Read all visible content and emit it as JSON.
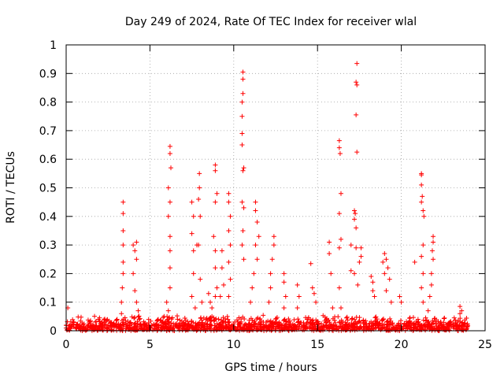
{
  "chart_data": {
    "type": "scatter",
    "title": "Day 249 of 2024, Rate Of TEC Index for receiver wlal",
    "xlabel": "GPS time / hours",
    "ylabel": "ROTI / TECUs",
    "xlim": [
      0,
      25
    ],
    "ylim": [
      0,
      1
    ],
    "xticks": [
      0,
      5,
      10,
      15,
      20,
      25
    ],
    "yticks": [
      0,
      0.1,
      0.2,
      0.3,
      0.4,
      0.5,
      0.6,
      0.7,
      0.8,
      0.9,
      1
    ],
    "ytick_labels": [
      "0",
      "0.1",
      "0.2",
      "0.3",
      "0.4",
      "0.5",
      "0.6",
      "0.7",
      "0.8",
      "0.9",
      "1"
    ],
    "xtick_labels": [
      "0",
      "5",
      "10",
      "15",
      "20",
      "25"
    ],
    "grid": true,
    "marker": "+",
    "color": "#ff0000",
    "baseline": {
      "x_range": [
        0,
        24
      ],
      "typical_max": 0.04
    },
    "series": [
      {
        "name": "ROTI",
        "points": [
          {
            "x": 0.1,
            "y": 0.08
          },
          {
            "x": 3.4,
            "y": 0.45
          },
          {
            "x": 3.4,
            "y": 0.41
          },
          {
            "x": 3.4,
            "y": 0.35
          },
          {
            "x": 3.4,
            "y": 0.3
          },
          {
            "x": 3.4,
            "y": 0.24
          },
          {
            "x": 3.4,
            "y": 0.2
          },
          {
            "x": 3.35,
            "y": 0.15
          },
          {
            "x": 3.3,
            "y": 0.1
          },
          {
            "x": 3.3,
            "y": 0.06
          },
          {
            "x": 4.0,
            "y": 0.3
          },
          {
            "x": 4.1,
            "y": 0.28
          },
          {
            "x": 4.2,
            "y": 0.31
          },
          {
            "x": 4.2,
            "y": 0.25
          },
          {
            "x": 4.0,
            "y": 0.2
          },
          {
            "x": 4.1,
            "y": 0.14
          },
          {
            "x": 4.2,
            "y": 0.1
          },
          {
            "x": 4.3,
            "y": 0.07
          },
          {
            "x": 6.2,
            "y": 0.645
          },
          {
            "x": 6.2,
            "y": 0.62
          },
          {
            "x": 6.25,
            "y": 0.57
          },
          {
            "x": 6.1,
            "y": 0.5
          },
          {
            "x": 6.2,
            "y": 0.45
          },
          {
            "x": 6.1,
            "y": 0.4
          },
          {
            "x": 6.2,
            "y": 0.33
          },
          {
            "x": 6.2,
            "y": 0.28
          },
          {
            "x": 6.2,
            "y": 0.22
          },
          {
            "x": 6.2,
            "y": 0.15
          },
          {
            "x": 6.0,
            "y": 0.1
          },
          {
            "x": 6.1,
            "y": 0.07
          },
          {
            "x": 7.5,
            "y": 0.45
          },
          {
            "x": 7.6,
            "y": 0.4
          },
          {
            "x": 7.5,
            "y": 0.34
          },
          {
            "x": 7.6,
            "y": 0.28
          },
          {
            "x": 7.8,
            "y": 0.3
          },
          {
            "x": 7.6,
            "y": 0.2
          },
          {
            "x": 7.5,
            "y": 0.12
          },
          {
            "x": 7.7,
            "y": 0.08
          },
          {
            "x": 7.95,
            "y": 0.55
          },
          {
            "x": 7.95,
            "y": 0.5
          },
          {
            "x": 7.9,
            "y": 0.46
          },
          {
            "x": 8.0,
            "y": 0.4
          },
          {
            "x": 7.9,
            "y": 0.3
          },
          {
            "x": 8.0,
            "y": 0.18
          },
          {
            "x": 8.1,
            "y": 0.1
          },
          {
            "x": 8.5,
            "y": 0.13
          },
          {
            "x": 8.6,
            "y": 0.1
          },
          {
            "x": 8.7,
            "y": 0.08
          },
          {
            "x": 8.9,
            "y": 0.58
          },
          {
            "x": 8.9,
            "y": 0.56
          },
          {
            "x": 9.0,
            "y": 0.48
          },
          {
            "x": 8.9,
            "y": 0.45
          },
          {
            "x": 8.8,
            "y": 0.33
          },
          {
            "x": 8.9,
            "y": 0.28
          },
          {
            "x": 8.9,
            "y": 0.22
          },
          {
            "x": 9.0,
            "y": 0.15
          },
          {
            "x": 8.9,
            "y": 0.12
          },
          {
            "x": 8.7,
            "y": 0.05
          },
          {
            "x": 9.3,
            "y": 0.28
          },
          {
            "x": 9.3,
            "y": 0.22
          },
          {
            "x": 9.4,
            "y": 0.16
          },
          {
            "x": 9.2,
            "y": 0.12
          },
          {
            "x": 9.7,
            "y": 0.48
          },
          {
            "x": 9.7,
            "y": 0.45
          },
          {
            "x": 9.8,
            "y": 0.4
          },
          {
            "x": 9.7,
            "y": 0.35
          },
          {
            "x": 9.8,
            "y": 0.3
          },
          {
            "x": 9.7,
            "y": 0.24
          },
          {
            "x": 9.8,
            "y": 0.18
          },
          {
            "x": 9.7,
            "y": 0.12
          },
          {
            "x": 10.55,
            "y": 0.905
          },
          {
            "x": 10.55,
            "y": 0.88
          },
          {
            "x": 10.55,
            "y": 0.83
          },
          {
            "x": 10.5,
            "y": 0.8
          },
          {
            "x": 10.5,
            "y": 0.75
          },
          {
            "x": 10.5,
            "y": 0.69
          },
          {
            "x": 10.5,
            "y": 0.65
          },
          {
            "x": 10.6,
            "y": 0.57
          },
          {
            "x": 10.55,
            "y": 0.56
          },
          {
            "x": 10.5,
            "y": 0.45
          },
          {
            "x": 10.6,
            "y": 0.43
          },
          {
            "x": 10.55,
            "y": 0.35
          },
          {
            "x": 10.5,
            "y": 0.3
          },
          {
            "x": 10.6,
            "y": 0.25
          },
          {
            "x": 11.3,
            "y": 0.45
          },
          {
            "x": 11.3,
            "y": 0.42
          },
          {
            "x": 11.4,
            "y": 0.38
          },
          {
            "x": 11.5,
            "y": 0.33
          },
          {
            "x": 11.3,
            "y": 0.3
          },
          {
            "x": 11.4,
            "y": 0.25
          },
          {
            "x": 11.2,
            "y": 0.2
          },
          {
            "x": 11.1,
            "y": 0.15
          },
          {
            "x": 11.0,
            "y": 0.1
          },
          {
            "x": 12.4,
            "y": 0.33
          },
          {
            "x": 12.4,
            "y": 0.3
          },
          {
            "x": 12.3,
            "y": 0.25
          },
          {
            "x": 12.2,
            "y": 0.2
          },
          {
            "x": 12.2,
            "y": 0.15
          },
          {
            "x": 12.1,
            "y": 0.1
          },
          {
            "x": 13.0,
            "y": 0.2
          },
          {
            "x": 13.0,
            "y": 0.17
          },
          {
            "x": 13.1,
            "y": 0.12
          },
          {
            "x": 13.0,
            "y": 0.08
          },
          {
            "x": 13.8,
            "y": 0.16
          },
          {
            "x": 13.9,
            "y": 0.12
          },
          {
            "x": 13.8,
            "y": 0.08
          },
          {
            "x": 14.6,
            "y": 0.235
          },
          {
            "x": 14.7,
            "y": 0.15
          },
          {
            "x": 14.8,
            "y": 0.13
          },
          {
            "x": 14.9,
            "y": 0.1
          },
          {
            "x": 15.7,
            "y": 0.31
          },
          {
            "x": 15.7,
            "y": 0.27
          },
          {
            "x": 15.8,
            "y": 0.2
          },
          {
            "x": 15.9,
            "y": 0.08
          },
          {
            "x": 16.3,
            "y": 0.665
          },
          {
            "x": 16.3,
            "y": 0.64
          },
          {
            "x": 16.35,
            "y": 0.62
          },
          {
            "x": 16.4,
            "y": 0.48
          },
          {
            "x": 16.3,
            "y": 0.41
          },
          {
            "x": 16.4,
            "y": 0.32
          },
          {
            "x": 16.3,
            "y": 0.29
          },
          {
            "x": 16.3,
            "y": 0.15
          },
          {
            "x": 16.4,
            "y": 0.08
          },
          {
            "x": 17.0,
            "y": 0.3
          },
          {
            "x": 17.0,
            "y": 0.21
          },
          {
            "x": 17.35,
            "y": 0.935
          },
          {
            "x": 17.3,
            "y": 0.87
          },
          {
            "x": 17.35,
            "y": 0.86
          },
          {
            "x": 17.3,
            "y": 0.755
          },
          {
            "x": 17.35,
            "y": 0.625
          },
          {
            "x": 17.2,
            "y": 0.42
          },
          {
            "x": 17.25,
            "y": 0.41
          },
          {
            "x": 17.2,
            "y": 0.39
          },
          {
            "x": 17.3,
            "y": 0.36
          },
          {
            "x": 17.3,
            "y": 0.29
          },
          {
            "x": 17.2,
            "y": 0.2
          },
          {
            "x": 17.4,
            "y": 0.16
          },
          {
            "x": 17.6,
            "y": 0.29
          },
          {
            "x": 17.6,
            "y": 0.26
          },
          {
            "x": 17.5,
            "y": 0.24
          },
          {
            "x": 18.2,
            "y": 0.19
          },
          {
            "x": 18.3,
            "y": 0.17
          },
          {
            "x": 18.3,
            "y": 0.14
          },
          {
            "x": 18.4,
            "y": 0.12
          },
          {
            "x": 18.9,
            "y": 0.24
          },
          {
            "x": 19.0,
            "y": 0.27
          },
          {
            "x": 19.1,
            "y": 0.25
          },
          {
            "x": 19.2,
            "y": 0.22
          },
          {
            "x": 19.0,
            "y": 0.2
          },
          {
            "x": 19.3,
            "y": 0.18
          },
          {
            "x": 19.1,
            "y": 0.14
          },
          {
            "x": 19.4,
            "y": 0.1
          },
          {
            "x": 19.9,
            "y": 0.12
          },
          {
            "x": 20.0,
            "y": 0.1
          },
          {
            "x": 20.8,
            "y": 0.24
          },
          {
            "x": 21.2,
            "y": 0.55
          },
          {
            "x": 21.2,
            "y": 0.545
          },
          {
            "x": 21.2,
            "y": 0.51
          },
          {
            "x": 21.25,
            "y": 0.47
          },
          {
            "x": 21.2,
            "y": 0.45
          },
          {
            "x": 21.3,
            "y": 0.42
          },
          {
            "x": 21.35,
            "y": 0.4
          },
          {
            "x": 21.3,
            "y": 0.3
          },
          {
            "x": 21.2,
            "y": 0.26
          },
          {
            "x": 21.3,
            "y": 0.2
          },
          {
            "x": 21.2,
            "y": 0.15
          },
          {
            "x": 21.3,
            "y": 0.1
          },
          {
            "x": 21.9,
            "y": 0.33
          },
          {
            "x": 21.9,
            "y": 0.31
          },
          {
            "x": 21.85,
            "y": 0.28
          },
          {
            "x": 21.9,
            "y": 0.25
          },
          {
            "x": 21.8,
            "y": 0.2
          },
          {
            "x": 21.8,
            "y": 0.16
          },
          {
            "x": 21.7,
            "y": 0.12
          },
          {
            "x": 21.6,
            "y": 0.07
          },
          {
            "x": 23.5,
            "y": 0.085
          },
          {
            "x": 23.6,
            "y": 0.07
          },
          {
            "x": 23.5,
            "y": 0.06
          }
        ]
      }
    ]
  }
}
